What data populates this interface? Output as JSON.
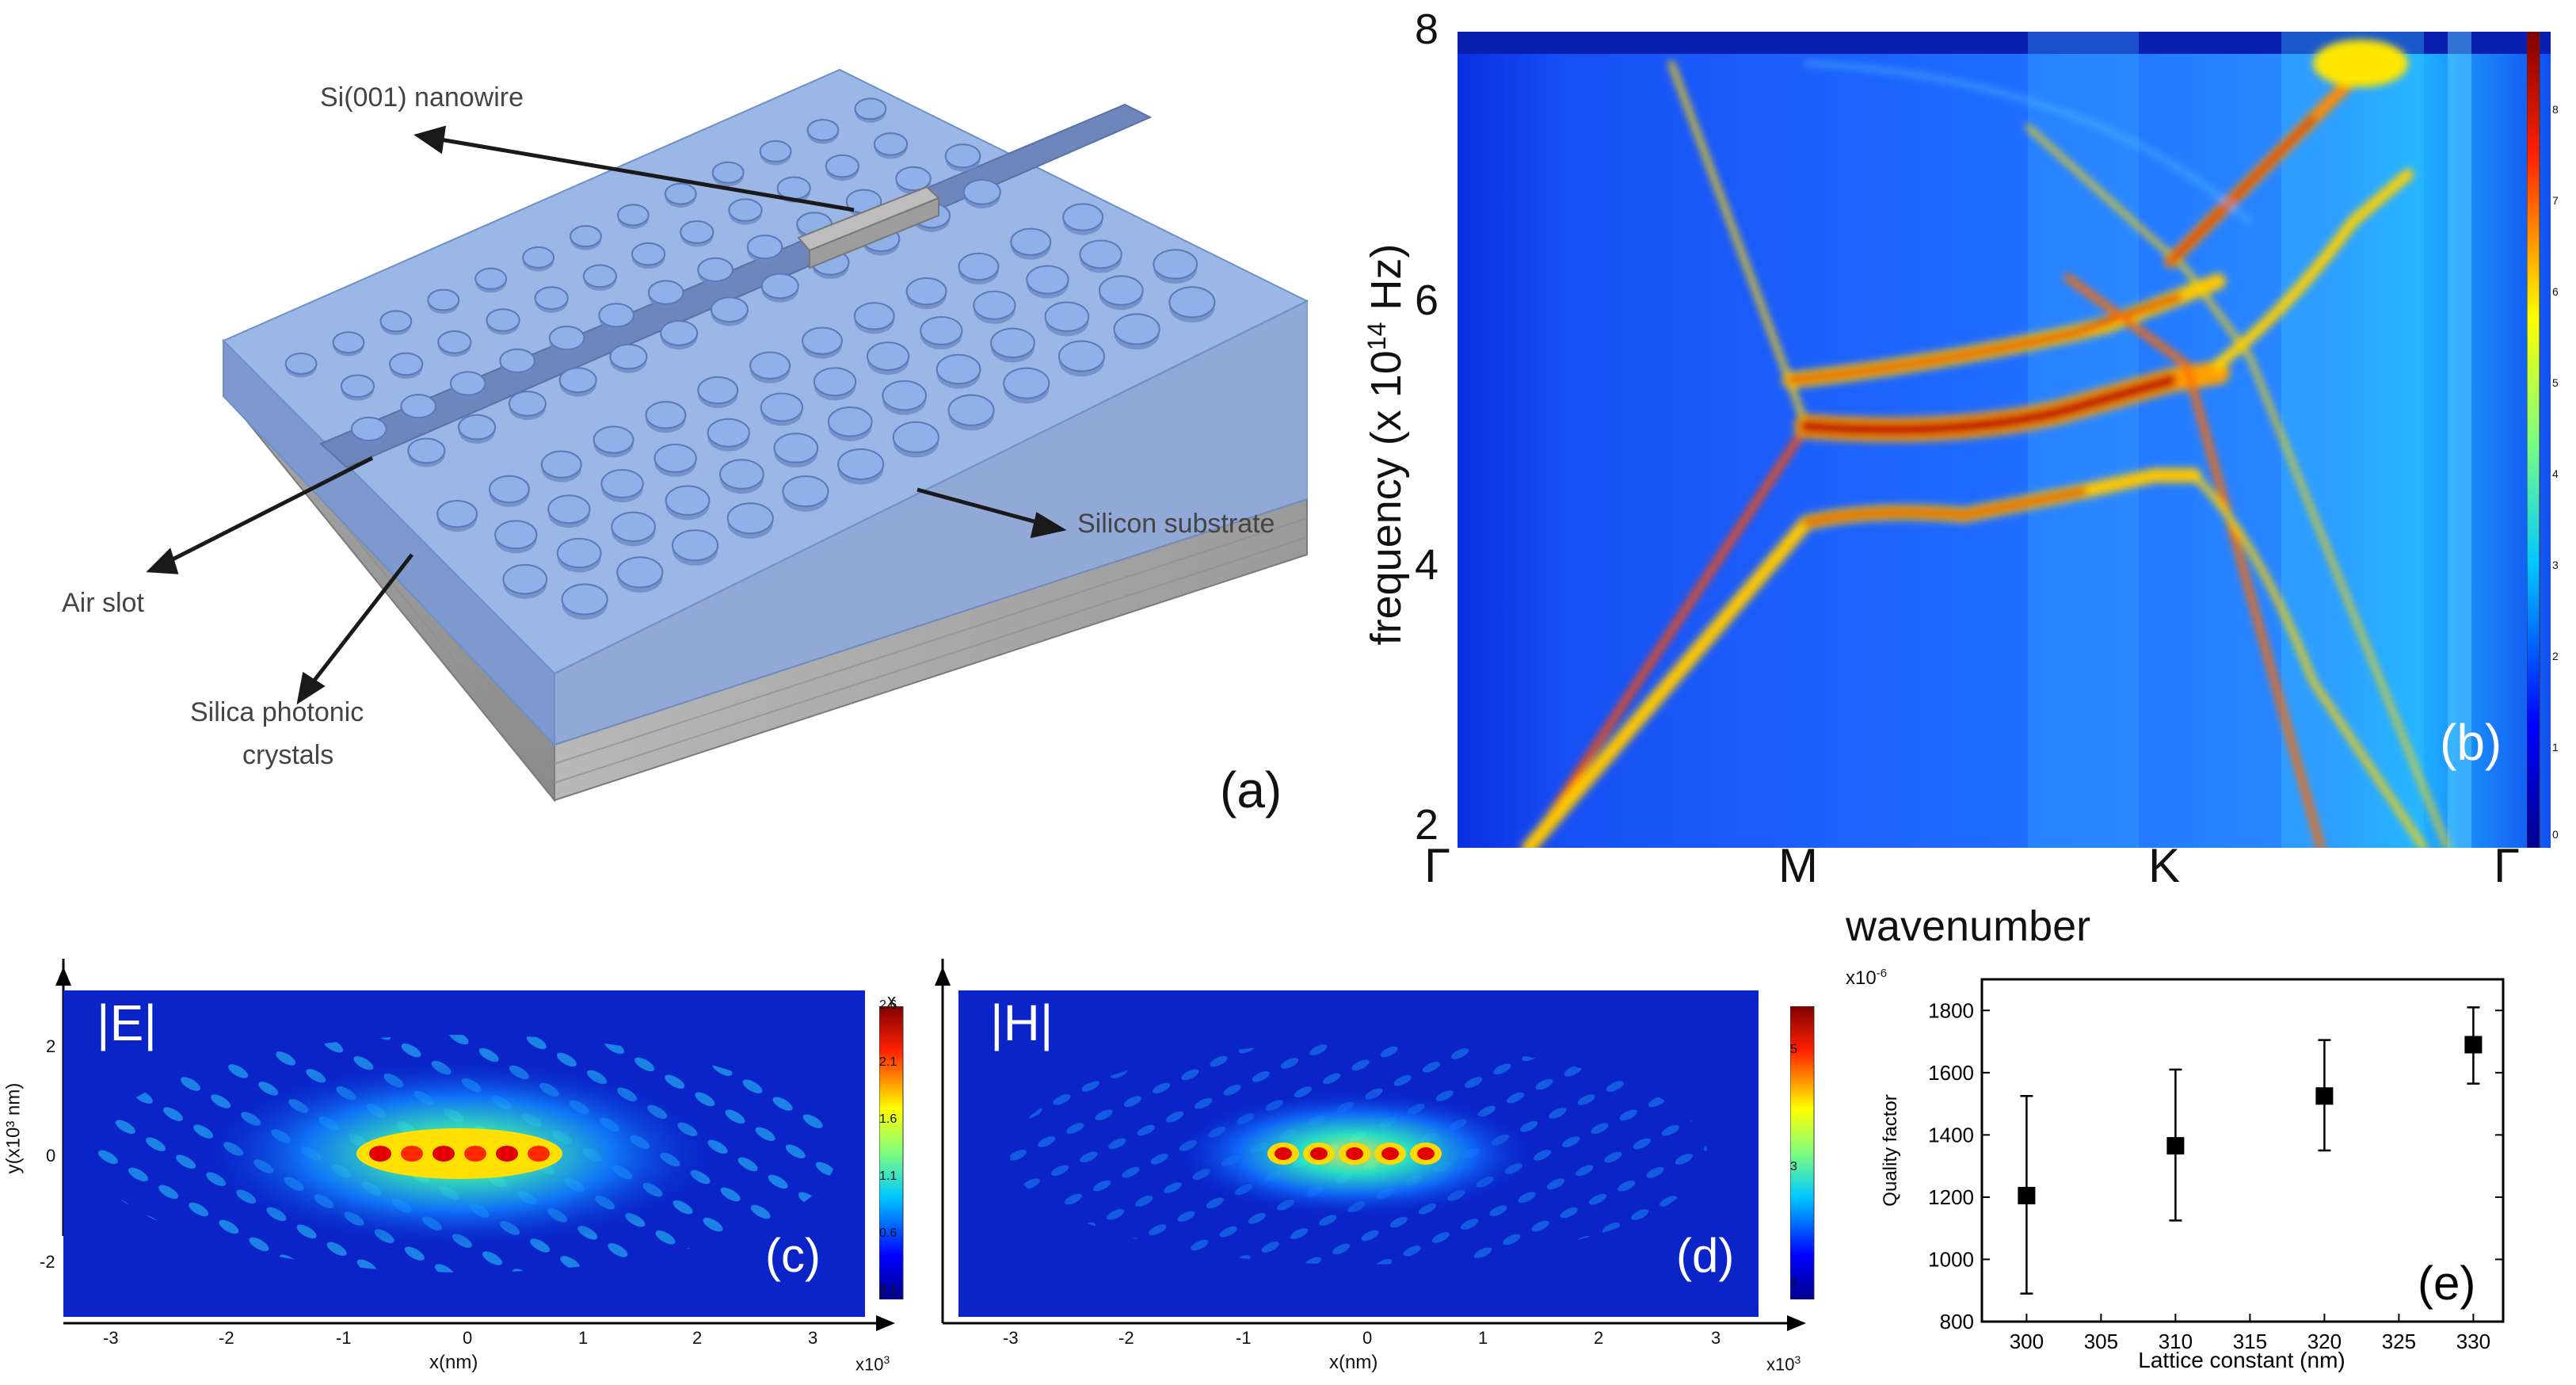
{
  "panel_a": {
    "tag": "(a)",
    "labels": {
      "nanowire": "Si(001) nanowire",
      "substrate": "Silicon substrate",
      "air_slot": "Air slot",
      "crystals_line1": "Silica photonic",
      "crystals_line2": "crystals"
    }
  },
  "panel_b": {
    "tag": "(b)",
    "ylabel_pre": "frequency (x 10",
    "ylabel_sup": "14",
    "ylabel_post": " Hz)",
    "xlabel": "wavenumber",
    "yticks": [
      "2",
      "4",
      "6",
      "8"
    ],
    "xticks": [
      "Γ",
      "M",
      "K",
      "Γ"
    ],
    "colorbar_ticks": [
      "8",
      "7",
      "6",
      "5",
      "4",
      "3",
      "2",
      "1",
      "0"
    ]
  },
  "panel_c": {
    "tag": "(c)",
    "field": "|E|",
    "ylabel": "y(x10³ nm)",
    "yticks": [
      "2",
      "0",
      "-2"
    ],
    "xticks": [
      "-3",
      "-2",
      "-1",
      "0",
      "1",
      "2",
      "3"
    ],
    "xlabel": "x(nm)",
    "x_multiplier": "x10",
    "x_multiplier_exp": "3",
    "y_multiplier": "x",
    "colorbar_ticks": [
      "2.6",
      "2.1",
      "1.6",
      "1.1",
      "0.6",
      "0.1"
    ]
  },
  "panel_d": {
    "tag": "(d)",
    "field": "|H|",
    "xticks": [
      "-3",
      "-2",
      "-1",
      "0",
      "1",
      "2",
      "3"
    ],
    "xlabel": "x(nm)",
    "x_multiplier": "x10",
    "x_multiplier_exp": "3",
    "colorbar_ticks": [
      "5",
      "3",
      "1"
    ]
  },
  "chart_data": {
    "type": "scatter",
    "title": "(e)",
    "xlabel": "Lattice constant (nm)",
    "ylabel": "Quality factor",
    "x_multiplier": "x10",
    "x_multiplier_exp": "-6",
    "xlim": [
      297,
      332
    ],
    "ylim": [
      800,
      1900
    ],
    "xticks": [
      300,
      305,
      310,
      315,
      320,
      325,
      330
    ],
    "yticks": [
      800,
      1000,
      1200,
      1400,
      1600,
      1800
    ],
    "series": [
      {
        "name": "Quality factor",
        "x": [
          300,
          310,
          320,
          330
        ],
        "y": [
          1205,
          1365,
          1525,
          1690
        ],
        "err_low": [
          890,
          1125,
          1350,
          1565
        ],
        "err_high": [
          1525,
          1610,
          1705,
          1810
        ]
      }
    ]
  }
}
